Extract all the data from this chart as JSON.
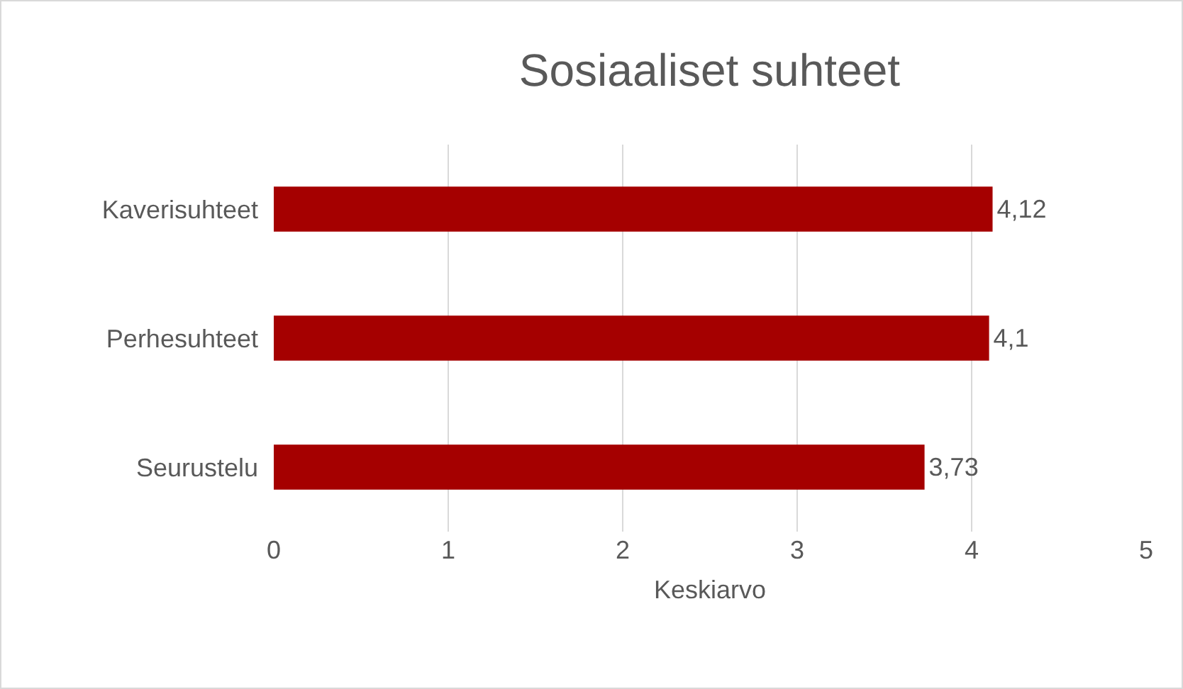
{
  "chart_data": {
    "type": "bar",
    "title": "Sosiaaliset suhteet",
    "orientation": "horizontal",
    "categories": [
      "Kaverisuhteet",
      "Perhesuhteet",
      "Seurustelu"
    ],
    "values": [
      4.12,
      4.1,
      3.73
    ],
    "value_labels": [
      "4,12",
      "4,1",
      "3,73"
    ],
    "color": "#a50000",
    "xlabel": "Keskiarvo",
    "xlim": [
      0,
      5
    ],
    "xticks": [
      0,
      1,
      2,
      3,
      4,
      5
    ],
    "grid": "x"
  }
}
